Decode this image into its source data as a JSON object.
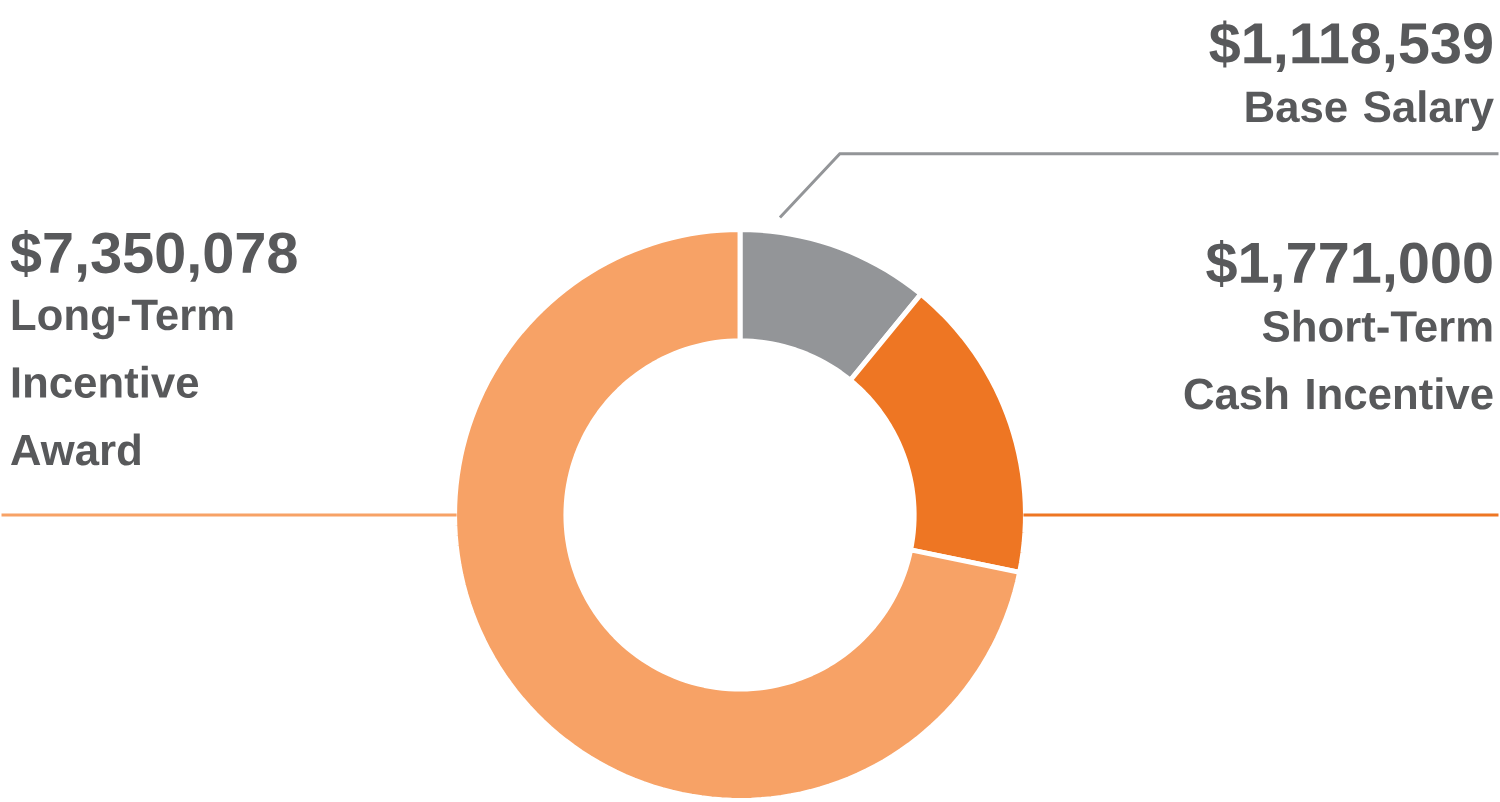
{
  "chart_data": {
    "type": "donut",
    "categories": [
      "Base Salary",
      "Short-Term Cash Incentive",
      "Long-Term Incentive Award"
    ],
    "values": [
      1118539,
      1771000,
      7350078
    ],
    "value_labels": [
      "$1,118,539",
      "$1,771,000",
      "$7,350,078"
    ],
    "colors": [
      "#939598",
      "#ee7623",
      "#f7a266"
    ]
  }
}
